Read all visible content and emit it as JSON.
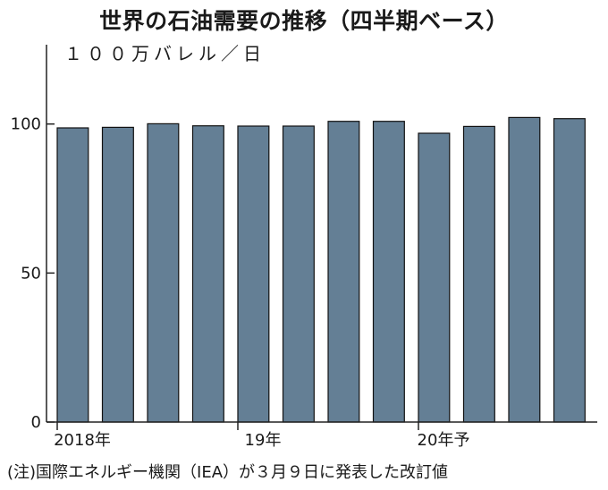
{
  "chart_data": {
    "type": "bar",
    "title": "世界の石油需要の推移（四半期ベース）",
    "ylabel": "１００万バレル／日",
    "ylim": [
      0,
      130
    ],
    "yticks": [
      0,
      50,
      100
    ],
    "grid": false,
    "categories": [
      "2018Q1",
      "2018Q2",
      "2018Q3",
      "2018Q4",
      "2019Q1",
      "2019Q2",
      "2019Q3",
      "2019Q4",
      "2020Q1",
      "2020Q2",
      "2020Q3",
      "2020Q4"
    ],
    "x_tick_labels": [
      {
        "index": 0,
        "label": "2018年"
      },
      {
        "index": 4,
        "label": "19年"
      },
      {
        "index": 8,
        "label": "20年予"
      }
    ],
    "values": [
      98.7,
      98.9,
      100.1,
      99.4,
      99.3,
      99.3,
      100.9,
      100.9,
      96.9,
      99.2,
      102.2,
      101.8
    ],
    "bar_color": "#647f95",
    "bar_edge_color": "#111111"
  },
  "note": "(注)国際エネルギー機関（IEA）が３月９日に発表した改訂値"
}
